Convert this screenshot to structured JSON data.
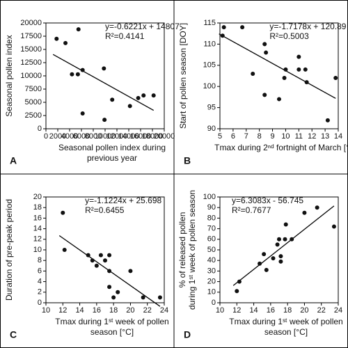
{
  "chart_data": [
    {
      "type": "scatter",
      "panel_label": "A",
      "xlabel": [
        "Seasonal pollen index during",
        "previous year"
      ],
      "ylabel": [
        "Seasonal pollen index"
      ],
      "x": [
        1800,
        3300,
        5500,
        4400,
        5400,
        6200,
        6200,
        9800,
        9900,
        11200,
        14200,
        15600,
        16500,
        18200
      ],
      "values": [
        17000,
        16200,
        18800,
        10300,
        10300,
        11100,
        2900,
        11400,
        1700,
        5500,
        4300,
        5800,
        6300,
        6300
      ],
      "xlim": [
        0,
        20000
      ],
      "xticks": [
        0,
        2000,
        4000,
        6000,
        8000,
        10000,
        12000,
        14000,
        16000,
        18000,
        20000
      ],
      "ylim": [
        0,
        20000
      ],
      "yticks": [
        0,
        2500,
        5000,
        7500,
        10000,
        12500,
        15000,
        17500,
        20000
      ],
      "trendline": {
        "label": "y=-0.6221x + 14807",
        "r2_label": "R²=0.4141",
        "slope": -0.6221,
        "intercept": 14807
      },
      "color": "#111111"
    },
    {
      "type": "scatter",
      "panel_label": "B",
      "xlabel": [
        "Tmax during 2ⁿᵈ fortnight of March [°C]"
      ],
      "ylabel": [
        "Start of pollen season [DOY]"
      ],
      "x": [
        5.2,
        5.3,
        6.7,
        8.4,
        8.5,
        7.5,
        8.4,
        9.5,
        9.9,
        10,
        11,
        11,
        11.5,
        11.6,
        13.2,
        13.8
      ],
      "values": [
        112,
        114,
        114,
        110,
        108,
        103,
        98,
        97,
        102,
        104,
        104,
        107,
        104,
        101,
        92,
        102
      ],
      "xlim": [
        5,
        14
      ],
      "xticks": [
        5,
        6,
        7,
        8,
        9,
        10,
        11,
        12,
        13,
        14
      ],
      "ylim": [
        90,
        115
      ],
      "yticks": [
        90,
        95,
        100,
        105,
        110,
        115
      ],
      "trendline": {
        "label": "y=-1.7178x + 120.89",
        "r2_label": "R²=0.5003",
        "slope": -1.7178,
        "intercept": 120.89
      },
      "color": "#111111"
    },
    {
      "type": "scatter",
      "panel_label": "C",
      "xlabel": [
        "Tmax during 1ˢᵗ week of pollen",
        "season [°C]"
      ],
      "ylabel": [
        "Duration of pre-peak period"
      ],
      "x": [
        12,
        12.2,
        15,
        15.5,
        16,
        16.5,
        17.5,
        17,
        17.5,
        17.5,
        18,
        18.5,
        20,
        21.5,
        23.5
      ],
      "values": [
        17,
        10,
        9,
        8,
        7,
        9,
        9,
        8,
        6,
        3,
        1,
        2,
        6,
        1,
        1
      ],
      "xlim": [
        10,
        24
      ],
      "xticks": [
        10,
        12,
        14,
        16,
        18,
        20,
        22,
        24
      ],
      "ylim": [
        0,
        20
      ],
      "yticks": [
        0,
        2,
        4,
        6,
        8,
        10,
        12,
        14,
        16,
        18,
        20
      ],
      "trendline": {
        "label": "y=-1.1224x + 25.698",
        "r2_label": "R²=0.6455",
        "slope": -1.1224,
        "intercept": 25.698
      },
      "color": "#111111"
    },
    {
      "type": "scatter",
      "panel_label": "D",
      "xlabel": [
        "Tmax during 1ˢᵗ week of pollen",
        "season [°C]"
      ],
      "ylabel": [
        "% of released pollen",
        "during 1ˢᵗ week of pollen season"
      ],
      "x": [
        12,
        12.3,
        14.7,
        15.2,
        15.5,
        16.3,
        16.8,
        17,
        17.2,
        17.2,
        17.7,
        17.8,
        18.5,
        20,
        21.5,
        23.5
      ],
      "values": [
        11,
        20,
        37,
        46,
        31,
        42,
        55,
        60,
        39,
        44,
        60,
        74,
        60,
        85,
        90,
        72
      ],
      "xlim": [
        10,
        24
      ],
      "xticks": [
        10,
        12,
        14,
        16,
        18,
        20,
        22,
        24
      ],
      "ylim": [
        0,
        100
      ],
      "yticks": [
        0,
        10,
        20,
        30,
        40,
        50,
        60,
        70,
        80,
        90,
        100
      ],
      "trendline": {
        "label": "y=6.3083x - 56.745",
        "r2_label": "R²=0.7677",
        "slope": 6.3083,
        "intercept": -56.745
      },
      "color": "#111111"
    }
  ]
}
